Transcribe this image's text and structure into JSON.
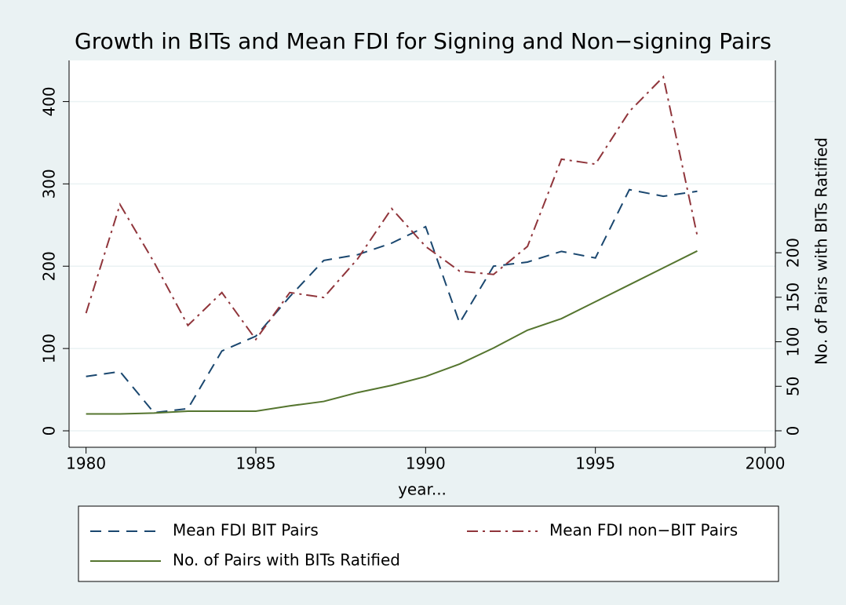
{
  "chart_data": {
    "type": "line",
    "title": "Growth in BITs and Mean FDI for Signing and Non−signing Pairs",
    "x_label": "year...",
    "y2_label": "No. of Pairs with BITs Ratified",
    "x": [
      1980,
      1981,
      1982,
      1983,
      1984,
      1985,
      1986,
      1987,
      1988,
      1989,
      1990,
      1991,
      1992,
      1993,
      1994,
      1995,
      1996,
      1997,
      1998
    ],
    "series": [
      {
        "name": "Mean FDI BIT Pairs",
        "color": "#1a476f",
        "style": "dash",
        "values": [
          66,
          72,
          22,
          27,
          97,
          115,
          163,
          207,
          214,
          228,
          248,
          131,
          200,
          205,
          218,
          210,
          293,
          285,
          291
        ]
      },
      {
        "name": "Mean FDI non−BIT Pairs",
        "color": "#90353b",
        "style": "dashdot",
        "values": [
          143,
          275,
          205,
          128,
          168,
          111,
          168,
          162,
          209,
          270,
          224,
          194,
          190,
          224,
          330,
          324,
          388,
          430,
          237
        ]
      },
      {
        "name": "No. of Pairs with BITs Ratified",
        "color": "#55752f",
        "style": "solid",
        "axis": "y2",
        "values": [
          19,
          19,
          20,
          22,
          22,
          22,
          28,
          33,
          43,
          51,
          61,
          75,
          93,
          113,
          126,
          145,
          164,
          183,
          202
        ]
      }
    ],
    "xlim": [
      1979.5,
      2000.3
    ],
    "xticks": [
      1980,
      1985,
      1990,
      1995,
      2000
    ],
    "ylim": [
      -20,
      450
    ],
    "yticks": [
      0,
      100,
      200,
      300,
      400
    ],
    "y2lim": [
      -18.5,
      416
    ],
    "y2ticks": [
      0,
      50,
      100,
      150,
      200
    ],
    "grid": true
  }
}
